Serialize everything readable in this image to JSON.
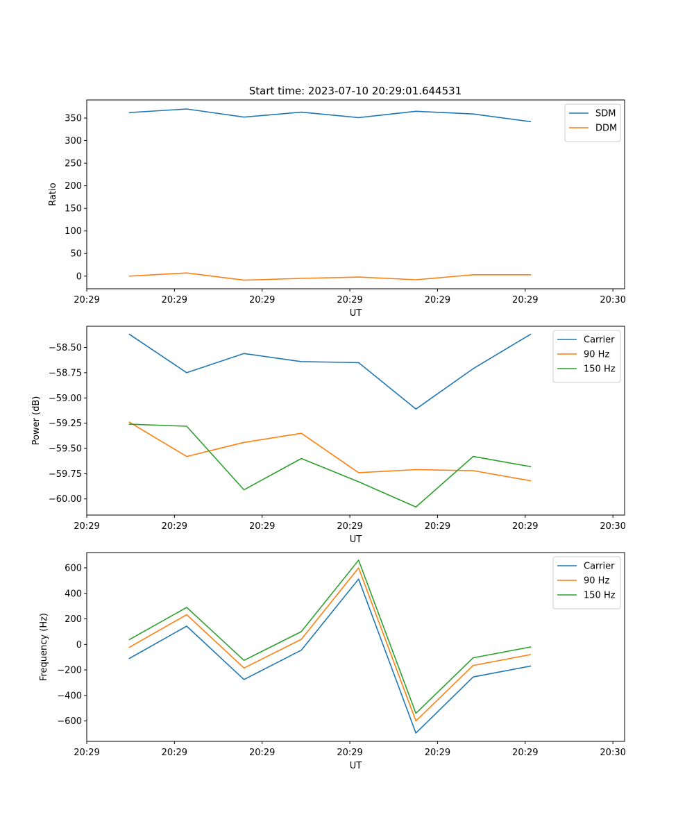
{
  "figure": {
    "title": "Start time: 2023-07-10 20:29:01.644531"
  },
  "chart_data": [
    {
      "type": "line",
      "xlabel": "UT",
      "ylabel": "Ratio",
      "xlim": [
        0,
        9.2
      ],
      "ylim": [
        -28,
        390
      ],
      "yticks": [
        0,
        50,
        100,
        150,
        200,
        250,
        300,
        350
      ],
      "xtick_positions": [
        0,
        1.5,
        3,
        4.5,
        6,
        7.5,
        9
      ],
      "xtick_labels": [
        "20:29",
        "20:29",
        "20:29",
        "20:29",
        "20:29",
        "20:29",
        "20:30"
      ],
      "x": [
        0.73,
        1.71,
        2.69,
        3.67,
        4.65,
        5.63,
        6.61,
        7.59
      ],
      "series": [
        {
          "name": "SDM",
          "color": "#1f77b4",
          "values": [
            362,
            370,
            352,
            363,
            351,
            365,
            359,
            342
          ]
        },
        {
          "name": "DDM",
          "color": "#ff7f0e",
          "values": [
            0,
            7,
            -9,
            -5,
            -2,
            -8,
            3,
            3
          ]
        }
      ],
      "legend": "top-right"
    },
    {
      "type": "line",
      "xlabel": "UT",
      "ylabel": "Power (dB)",
      "xlim": [
        0,
        9.2
      ],
      "ylim": [
        -60.16,
        -58.29
      ],
      "yticks": [
        -60.0,
        -59.75,
        -59.5,
        -59.25,
        -59.0,
        -58.75,
        -58.5
      ],
      "ytick_labels": [
        "−60.00",
        "−59.75",
        "−59.50",
        "−59.25",
        "−59.00",
        "−58.75",
        "−58.50"
      ],
      "xtick_positions": [
        0,
        1.5,
        3,
        4.5,
        6,
        7.5,
        9
      ],
      "xtick_labels": [
        "20:29",
        "20:29",
        "20:29",
        "20:29",
        "20:29",
        "20:29",
        "20:30"
      ],
      "x": [
        0.73,
        1.71,
        2.69,
        3.67,
        4.65,
        5.63,
        6.61,
        7.59
      ],
      "series": [
        {
          "name": "Carrier",
          "color": "#1f77b4",
          "values": [
            -58.37,
            -58.75,
            -58.56,
            -58.64,
            -58.65,
            -59.11,
            -58.71,
            -58.37
          ]
        },
        {
          "name": "90 Hz",
          "color": "#ff7f0e",
          "values": [
            -59.24,
            -59.58,
            -59.44,
            -59.35,
            -59.74,
            -59.71,
            -59.72,
            -59.82
          ]
        },
        {
          "name": "150 Hz",
          "color": "#2ca02c",
          "values": [
            -59.26,
            -59.28,
            -59.91,
            -59.6,
            -59.83,
            -60.08,
            -59.58,
            -59.68
          ]
        }
      ],
      "legend": "top-right"
    },
    {
      "type": "line",
      "xlabel": "UT",
      "ylabel": "Frequency (Hz)",
      "xlim": [
        0,
        9.2
      ],
      "ylim": [
        -760,
        720
      ],
      "yticks": [
        -600,
        -400,
        -200,
        0,
        200,
        400,
        600
      ],
      "ytick_labels": [
        "−600",
        "−400",
        "−200",
        "0",
        "200",
        "400",
        "600"
      ],
      "xtick_positions": [
        0,
        1.5,
        3,
        4.5,
        6,
        7.5,
        9
      ],
      "xtick_labels": [
        "20:29",
        "20:29",
        "20:29",
        "20:29",
        "20:29",
        "20:29",
        "20:30"
      ],
      "x": [
        0.73,
        1.71,
        2.69,
        3.67,
        4.65,
        5.63,
        6.61,
        7.59
      ],
      "series": [
        {
          "name": "Carrier",
          "color": "#1f77b4",
          "values": [
            -110,
            143,
            -275,
            -45,
            512,
            -695,
            -255,
            -170
          ]
        },
        {
          "name": "90 Hz",
          "color": "#ff7f0e",
          "values": [
            -22,
            233,
            -185,
            40,
            600,
            -600,
            -165,
            -80
          ]
        },
        {
          "name": "150 Hz",
          "color": "#2ca02c",
          "values": [
            38,
            290,
            -125,
            100,
            660,
            -540,
            -105,
            -20
          ]
        }
      ],
      "legend": "top-right"
    }
  ]
}
